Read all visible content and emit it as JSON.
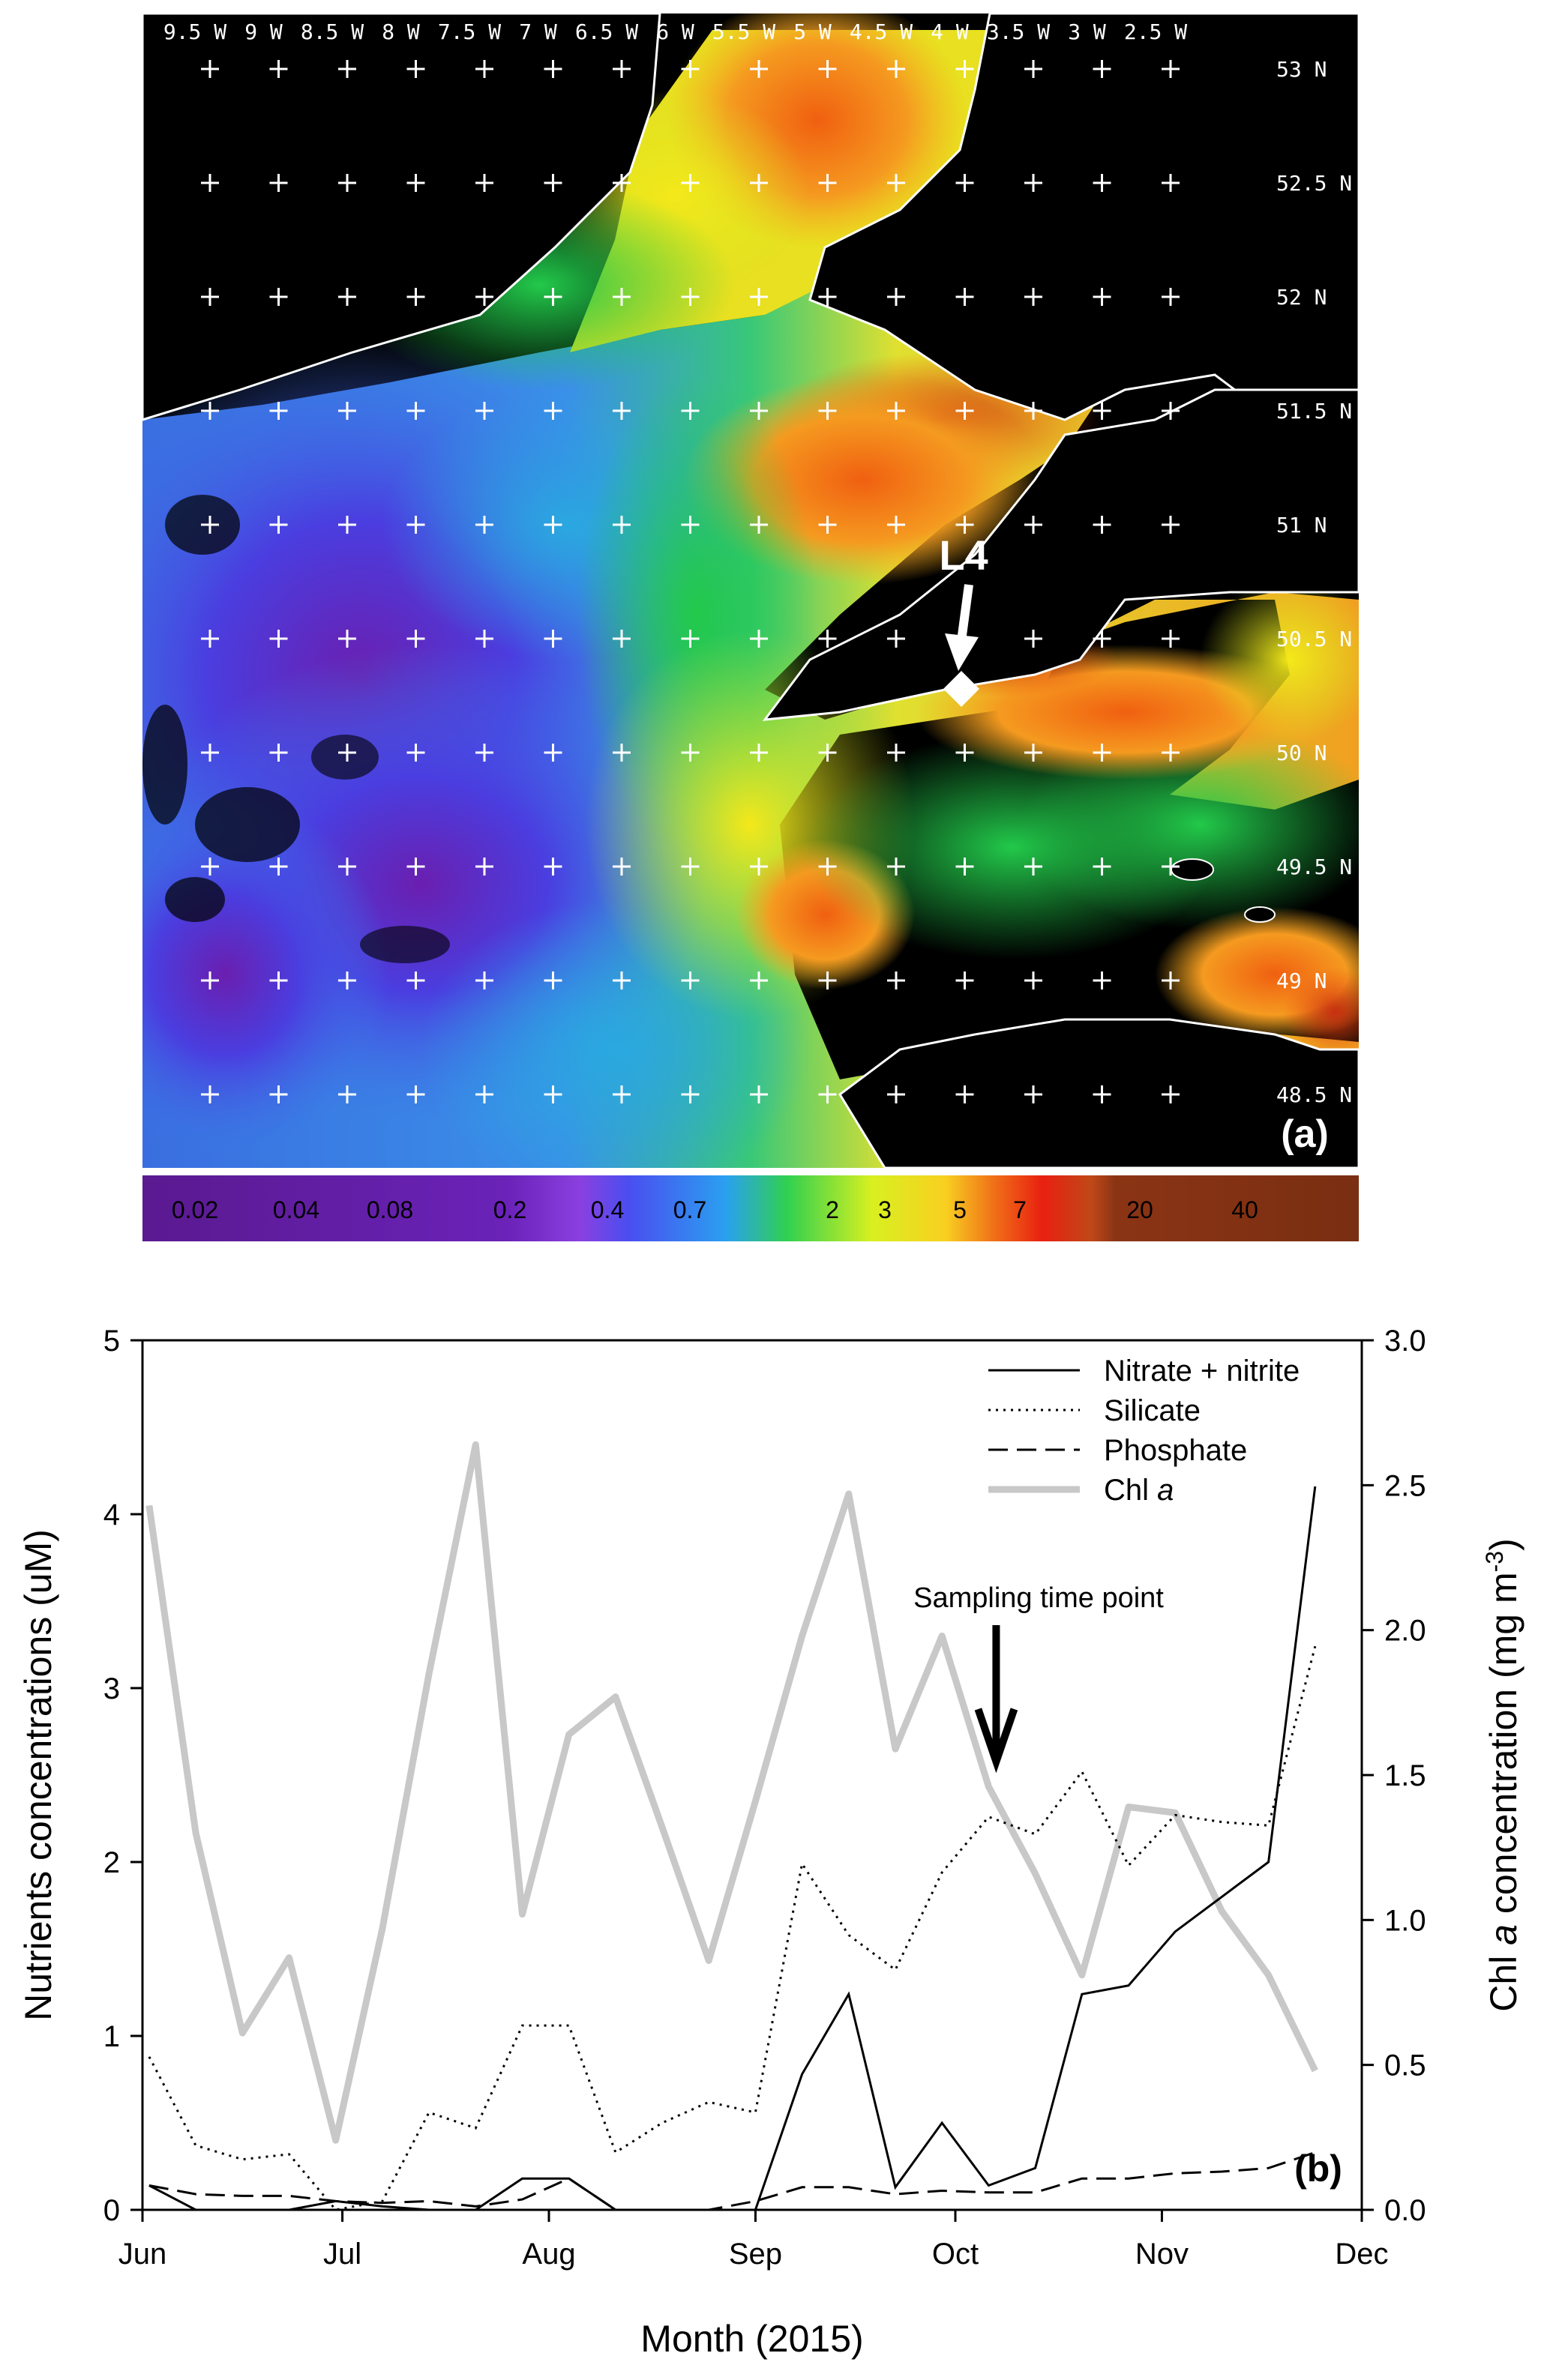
{
  "panel_a": {
    "panel_label": "(a)",
    "station_label": "L4",
    "longitude_labels": [
      "9.5 W",
      "9 W",
      "8.5 W",
      "8 W",
      "7.5 W",
      "7 W",
      "6.5 W",
      "6 W",
      "5.5 W",
      "5 W",
      "4.5 W",
      "4 W",
      "3.5 W",
      "3 W",
      "2.5 W"
    ],
    "latitude_labels": [
      "53 N",
      "52.5 N",
      "52 N",
      "51.5 N",
      "51 N",
      "50.5 N",
      "50 N",
      "49.5 N",
      "49 N",
      "48.5 N"
    ],
    "colorbar_labels": [
      "0.02",
      "0.04",
      "0.08",
      "0.2",
      "0.4",
      "0.7",
      "2",
      "3",
      "5",
      "7",
      "20",
      "40"
    ],
    "colors": {
      "land": "#000000",
      "coast": "#ffffff",
      "low": "#6a1fb0",
      "mid": "#2fd14a",
      "high": "#f04010",
      "max": "#7a2a10"
    }
  },
  "chart_data": {
    "type": "line",
    "panel_label": "(b)",
    "xlabel": "Month (2015)",
    "ylabel_left": "Nutrients concentrations (uM)",
    "ylabel_right": "Chl a concentration (mg m-3)",
    "x_ticks": [
      "Jun",
      "Jul",
      "Aug",
      "Sep",
      "Oct",
      "Nov",
      "Dec"
    ],
    "ylim_left": [
      0,
      5
    ],
    "yticks_left": [
      "0",
      "1",
      "2",
      "3",
      "4",
      "5"
    ],
    "ylim_right": [
      0,
      3
    ],
    "yticks_right": [
      "0.0",
      "0.5",
      "1.0",
      "1.5",
      "2.0",
      "2.5",
      "3.0"
    ],
    "annotation": "Sampling time point",
    "annotation_date": "2015-10-06",
    "legend_position": "top-right",
    "series": [
      {
        "name": "Nitrate + nitrite",
        "axis": "left",
        "style": "solid",
        "color": "#000000",
        "dates": [
          "2015-06-02",
          "2015-06-09",
          "2015-06-16",
          "2015-06-23",
          "2015-06-30",
          "2015-07-07",
          "2015-07-14",
          "2015-07-21",
          "2015-07-28",
          "2015-08-04",
          "2015-08-11",
          "2015-08-18",
          "2015-08-25",
          "2015-09-01",
          "2015-09-08",
          "2015-09-15",
          "2015-09-22",
          "2015-09-29",
          "2015-10-06",
          "2015-10-13",
          "2015-10-20",
          "2015-10-27",
          "2015-11-03",
          "2015-11-10",
          "2015-11-17",
          "2015-11-24"
        ],
        "values": [
          0.14,
          0.0,
          0.0,
          0.0,
          0.05,
          0.02,
          0.0,
          0.0,
          0.18,
          0.18,
          0.0,
          0.0,
          0.0,
          0.0,
          0.78,
          1.24,
          0.13,
          0.5,
          0.14,
          0.24,
          1.24,
          1.29,
          1.6,
          1.8,
          2.0,
          4.16
        ]
      },
      {
        "name": "Silicate",
        "axis": "left",
        "style": "dotted",
        "color": "#000000",
        "dates": [
          "2015-06-02",
          "2015-06-09",
          "2015-06-16",
          "2015-06-23",
          "2015-06-30",
          "2015-07-07",
          "2015-07-14",
          "2015-07-21",
          "2015-07-28",
          "2015-08-04",
          "2015-08-11",
          "2015-08-18",
          "2015-08-25",
          "2015-09-01",
          "2015-09-08",
          "2015-09-15",
          "2015-09-22",
          "2015-09-29",
          "2015-10-06",
          "2015-10-13",
          "2015-10-20",
          "2015-10-27",
          "2015-11-03",
          "2015-11-10",
          "2015-11-17",
          "2015-11-24"
        ],
        "values": [
          0.88,
          0.37,
          0.29,
          0.32,
          0.0,
          0.05,
          0.56,
          0.47,
          1.06,
          1.06,
          0.33,
          0.5,
          0.62,
          0.56,
          1.99,
          1.58,
          1.38,
          1.94,
          2.26,
          2.16,
          2.52,
          1.98,
          2.27,
          2.23,
          2.21,
          3.24
        ]
      },
      {
        "name": "Phosphate",
        "axis": "left",
        "style": "dashed",
        "color": "#000000",
        "dates": [
          "2015-06-02",
          "2015-06-09",
          "2015-06-16",
          "2015-06-23",
          "2015-06-30",
          "2015-07-07",
          "2015-07-14",
          "2015-07-21",
          "2015-07-28",
          "2015-08-04",
          "2015-08-11",
          "2015-08-18",
          "2015-08-25",
          "2015-09-01",
          "2015-09-08",
          "2015-09-15",
          "2015-09-22",
          "2015-09-29",
          "2015-10-06",
          "2015-10-13",
          "2015-10-20",
          "2015-10-27",
          "2015-11-03",
          "2015-11-10",
          "2015-11-17",
          "2015-11-24"
        ],
        "values": [
          0.14,
          0.09,
          0.08,
          0.08,
          0.05,
          0.04,
          0.05,
          0.02,
          0.06,
          0.18,
          0.0,
          0.0,
          0.0,
          0.05,
          0.13,
          0.13,
          0.09,
          0.11,
          0.1,
          0.1,
          0.18,
          0.18,
          0.21,
          0.22,
          0.24,
          0.33
        ]
      },
      {
        "name": "Chl a",
        "axis": "right",
        "style": "solid-thick",
        "color": "#c8c8c8",
        "dates": [
          "2015-06-02",
          "2015-06-09",
          "2015-06-16",
          "2015-06-23",
          "2015-06-30",
          "2015-07-07",
          "2015-07-14",
          "2015-07-21",
          "2015-07-28",
          "2015-08-04",
          "2015-08-11",
          "2015-08-18",
          "2015-08-25",
          "2015-09-01",
          "2015-09-08",
          "2015-09-15",
          "2015-09-22",
          "2015-09-29",
          "2015-10-06",
          "2015-10-13",
          "2015-10-20",
          "2015-10-27",
          "2015-11-03",
          "2015-11-10",
          "2015-11-17",
          "2015-11-24"
        ],
        "values": [
          2.43,
          1.3,
          0.61,
          0.87,
          0.24,
          0.97,
          1.85,
          2.64,
          1.02,
          1.64,
          1.77,
          1.32,
          0.86,
          1.41,
          1.98,
          2.47,
          1.59,
          1.98,
          1.46,
          1.16,
          0.81,
          1.39,
          1.37,
          1.03,
          0.81,
          0.48
        ]
      }
    ]
  }
}
